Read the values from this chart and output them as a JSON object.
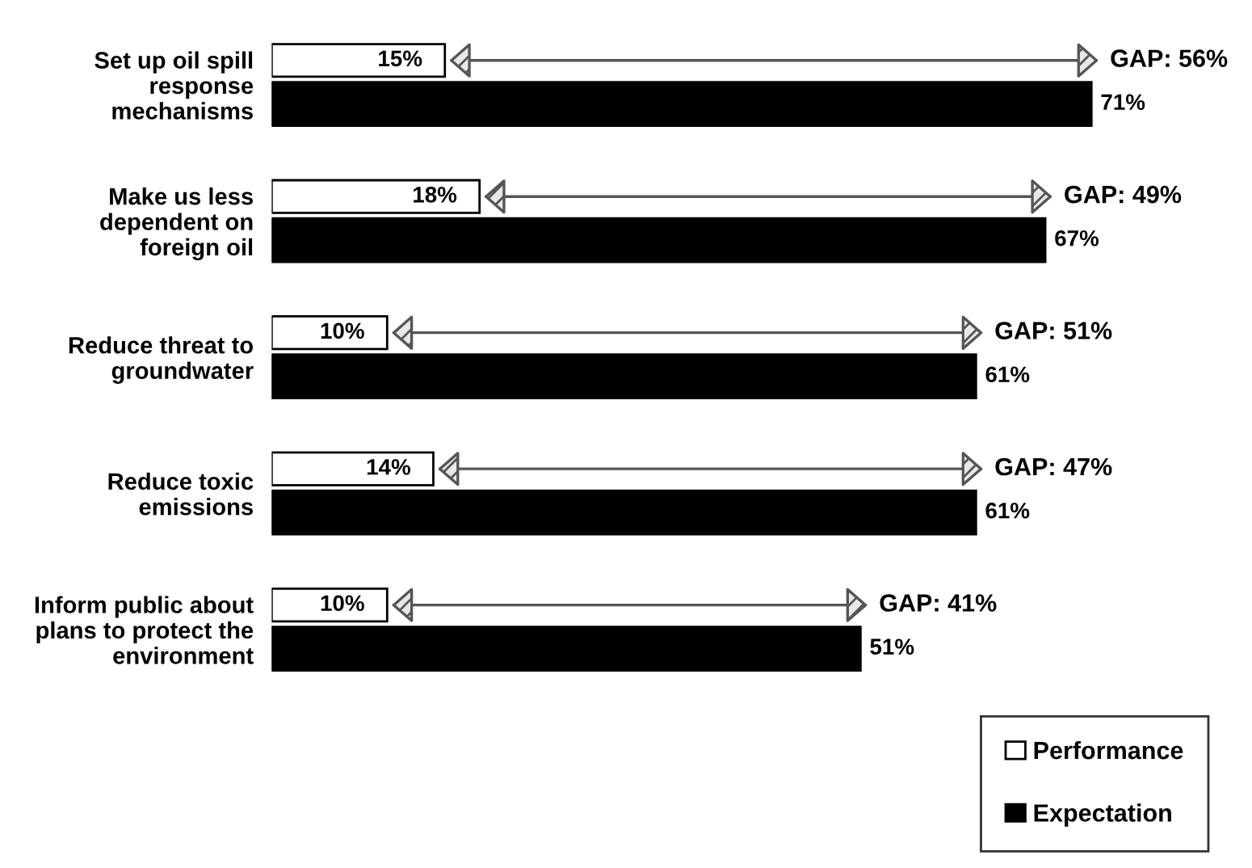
{
  "chart_data": {
    "type": "bar",
    "orientation": "horizontal",
    "categories": [
      "Set up oil spill\nresponse\nmechanisms",
      "Make us less\ndependent on\nforeign oil",
      "Reduce threat to\ngroundwater",
      "Reduce toxic\nemissions",
      "Inform public about\nplans to protect the\nenvironment"
    ],
    "series": [
      {
        "name": "Performance",
        "color": "#ffffff",
        "values": [
          15,
          18,
          10,
          14,
          10
        ],
        "value_labels": [
          "15%",
          "18%",
          "10%",
          "14%",
          "10%"
        ]
      },
      {
        "name": "Expectation",
        "color": "#000000",
        "values": [
          71,
          67,
          61,
          61,
          51
        ],
        "value_labels": [
          "71%",
          "67%",
          "61%",
          "61%",
          "51%"
        ]
      }
    ],
    "annotations": [
      {
        "text": "GAP: 56%",
        "x": 71,
        "y": "Set up oil spill\nresponse\nmechanisms"
      },
      {
        "text": "GAP: 49%",
        "x": 67,
        "y": "Make us less\ndependent on\nforeign oil"
      },
      {
        "text": "GAP: 51%",
        "x": 61,
        "y": "Reduce threat to\ngroundwater"
      },
      {
        "text": "GAP: 47%",
        "x": 61,
        "y": "Reduce toxic\nemissions"
      },
      {
        "text": "GAP: 41%",
        "x": 51,
        "y": "Inform public about\nplans to protect the\nenvironment"
      }
    ],
    "tick_labels": "y",
    "grid": false,
    "legend": "bottom right"
  }
}
